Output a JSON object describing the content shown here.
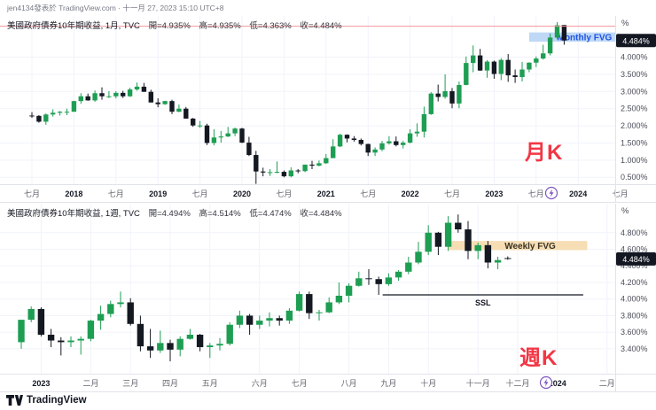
{
  "attribution": "jen4134發表於 TradingView.com · 十一月 27, 2023 15:10 UTC+8",
  "footer": {
    "brand": "TradingView"
  },
  "colors": {
    "up_candle": "#1e9e53",
    "down_candle": "#141821",
    "accent_red": "#f23645",
    "badge_bg": "#131722",
    "grid": "#f0f3fa",
    "axis_line": "#e0e3eb",
    "axis_text": "#4a4e59"
  },
  "chart_data": [
    {
      "type": "candlestick",
      "title": "美國政府債券10年期收益, 1月, TVC",
      "ohlc": [
        "開=4.935%",
        "高=4.935%",
        "低=4.363%",
        "收=4.484%"
      ],
      "interval_label": "月K",
      "unit": "%",
      "price_labels": [
        "4.000%",
        "3.500%",
        "3.000%",
        "2.500%",
        "2.000%",
        "1.500%",
        "1.000%",
        "0.500%"
      ],
      "last_price_badge": "4.484%",
      "ylim": [
        0.3,
        5.2
      ],
      "time_labels": [
        {
          "label": "七月",
          "index": 0
        },
        {
          "label": "2018",
          "index": 6
        },
        {
          "label": "七月",
          "index": 12
        },
        {
          "label": "2019",
          "index": 18
        },
        {
          "label": "七月",
          "index": 24
        },
        {
          "label": "2020",
          "index": 30
        },
        {
          "label": "七月",
          "index": 36
        },
        {
          "label": "2021",
          "index": 42
        },
        {
          "label": "七月",
          "index": 48
        },
        {
          "label": "2022",
          "index": 54
        },
        {
          "label": "七月",
          "index": 60
        },
        {
          "label": "2023",
          "index": 66
        },
        {
          "label": "七月",
          "index": 72
        },
        {
          "label": "2024",
          "index": 78
        },
        {
          "label": "七月",
          "index": 84
        }
      ],
      "annotations": {
        "horizontal_line": {
          "price": 4.9,
          "color": "#f2969b"
        },
        "fvg": {
          "label": "Monthly FVG",
          "from_index": 71,
          "price_top": 4.72,
          "price_bottom": 4.45,
          "band_color": "#bfd8f6",
          "label_color": "#1e53e5"
        },
        "axis_marker": {
          "type": "lightning",
          "x": 622
        }
      },
      "candles": [
        [
          2.3,
          2.4,
          2.23,
          2.29
        ],
        [
          2.29,
          2.31,
          2.09,
          2.12
        ],
        [
          2.12,
          2.36,
          2.03,
          2.33
        ],
        [
          2.33,
          2.48,
          2.27,
          2.38
        ],
        [
          2.38,
          2.43,
          2.3,
          2.41
        ],
        [
          2.41,
          2.5,
          2.31,
          2.41
        ],
        [
          2.41,
          2.73,
          2.41,
          2.72
        ],
        [
          2.72,
          2.95,
          2.64,
          2.86
        ],
        [
          2.86,
          2.94,
          2.73,
          2.74
        ],
        [
          2.74,
          3.03,
          2.7,
          2.95
        ],
        [
          2.95,
          3.12,
          2.76,
          2.86
        ],
        [
          2.86,
          3.01,
          2.81,
          2.86
        ],
        [
          2.86,
          3.01,
          2.8,
          2.96
        ],
        [
          2.96,
          3.02,
          2.81,
          2.86
        ],
        [
          2.86,
          3.11,
          2.84,
          3.06
        ],
        [
          3.06,
          3.26,
          3.02,
          3.14
        ],
        [
          3.14,
          3.25,
          2.99,
          2.99
        ],
        [
          2.99,
          3.05,
          2.68,
          2.68
        ],
        [
          2.68,
          2.8,
          2.54,
          2.63
        ],
        [
          2.63,
          2.73,
          2.61,
          2.72
        ],
        [
          2.72,
          2.76,
          2.34,
          2.41
        ],
        [
          2.41,
          2.62,
          2.4,
          2.5
        ],
        [
          2.5,
          2.55,
          2.21,
          2.21
        ],
        [
          2.21,
          2.23,
          1.97,
          2.01
        ],
        [
          2.01,
          2.14,
          1.94,
          2.01
        ],
        [
          2.01,
          2.06,
          1.44,
          1.5
        ],
        [
          1.5,
          1.9,
          1.43,
          1.66
        ],
        [
          1.66,
          1.85,
          1.51,
          1.69
        ],
        [
          1.69,
          1.97,
          1.67,
          1.78
        ],
        [
          1.78,
          1.95,
          1.7,
          1.92
        ],
        [
          1.92,
          1.94,
          1.5,
          1.51
        ],
        [
          1.51,
          1.68,
          1.12,
          1.15
        ],
        [
          1.15,
          1.27,
          0.31,
          0.67
        ],
        [
          0.67,
          0.78,
          0.53,
          0.64
        ],
        [
          0.64,
          0.74,
          0.54,
          0.65
        ],
        [
          0.65,
          0.96,
          0.62,
          0.66
        ],
        [
          0.66,
          0.7,
          0.5,
          0.53
        ],
        [
          0.53,
          0.79,
          0.5,
          0.7
        ],
        [
          0.7,
          0.74,
          0.62,
          0.68
        ],
        [
          0.68,
          0.87,
          0.65,
          0.87
        ],
        [
          0.87,
          0.98,
          0.74,
          0.84
        ],
        [
          0.84,
          0.99,
          0.82,
          0.91
        ],
        [
          0.91,
          1.18,
          0.89,
          1.06
        ],
        [
          1.06,
          1.61,
          1.06,
          1.4
        ],
        [
          1.4,
          1.77,
          1.38,
          1.74
        ],
        [
          1.74,
          1.75,
          1.52,
          1.63
        ],
        [
          1.63,
          1.7,
          1.54,
          1.59
        ],
        [
          1.59,
          1.63,
          1.43,
          1.47
        ],
        [
          1.47,
          1.48,
          1.12,
          1.22
        ],
        [
          1.22,
          1.37,
          1.12,
          1.31
        ],
        [
          1.31,
          1.56,
          1.26,
          1.49
        ],
        [
          1.49,
          1.7,
          1.45,
          1.55
        ],
        [
          1.55,
          1.69,
          1.4,
          1.44
        ],
        [
          1.44,
          1.56,
          1.34,
          1.51
        ],
        [
          1.51,
          1.9,
          1.49,
          1.78
        ],
        [
          1.78,
          2.07,
          1.68,
          1.83
        ],
        [
          1.83,
          2.56,
          1.66,
          2.34
        ],
        [
          2.34,
          2.98,
          2.32,
          2.94
        ],
        [
          2.94,
          3.2,
          2.71,
          2.84
        ],
        [
          2.84,
          3.5,
          2.79,
          3.01
        ],
        [
          3.01,
          3.1,
          2.51,
          2.65
        ],
        [
          2.65,
          3.29,
          2.51,
          3.19
        ],
        [
          3.19,
          4.02,
          3.18,
          3.83
        ],
        [
          3.83,
          4.34,
          3.56,
          4.05
        ],
        [
          4.05,
          4.24,
          3.6,
          3.61
        ],
        [
          3.61,
          3.91,
          3.4,
          3.87
        ],
        [
          3.87,
          3.9,
          3.37,
          3.51
        ],
        [
          3.51,
          3.97,
          3.33,
          3.92
        ],
        [
          3.92,
          4.09,
          3.28,
          3.47
        ],
        [
          3.47,
          3.64,
          3.25,
          3.42
        ],
        [
          3.42,
          3.86,
          3.29,
          3.64
        ],
        [
          3.64,
          3.85,
          3.56,
          3.84
        ],
        [
          3.84,
          4.02,
          3.71,
          3.96
        ],
        [
          3.96,
          4.36,
          3.93,
          4.11
        ],
        [
          4.11,
          4.69,
          4.05,
          4.57
        ],
        [
          4.57,
          5.02,
          4.52,
          4.93
        ],
        [
          4.935,
          4.935,
          4.363,
          4.484
        ]
      ]
    },
    {
      "type": "candlestick",
      "title": "美國政府債券10年期收益, 1週, TVC",
      "ohlc": [
        "開=4.494%",
        "高=4.514%",
        "低=4.474%",
        "收=4.484%"
      ],
      "interval_label": "週K",
      "unit": "%",
      "price_labels": [
        "4.800%",
        "4.600%",
        "4.400%",
        "4.200%",
        "4.000%",
        "3.800%",
        "3.600%",
        "3.400%"
      ],
      "last_price_badge": "4.484%",
      "ylim": [
        3.1,
        5.15
      ],
      "time_labels": [
        {
          "label": "2023",
          "index": 2
        },
        {
          "label": "二月",
          "index": 7
        },
        {
          "label": "三月",
          "index": 11
        },
        {
          "label": "四月",
          "index": 15
        },
        {
          "label": "五月",
          "index": 19
        },
        {
          "label": "六月",
          "index": 24
        },
        {
          "label": "七月",
          "index": 28
        },
        {
          "label": "八月",
          "index": 33
        },
        {
          "label": "九月",
          "index": 37
        },
        {
          "label": "十月",
          "index": 41
        },
        {
          "label": "十一月",
          "index": 46
        },
        {
          "label": "十二月",
          "index": 50
        },
        {
          "label": "2024",
          "index": 54
        },
        {
          "label": "二月",
          "index": 59
        }
      ],
      "annotations": {
        "fvg": {
          "label": "Weekly FVG",
          "from_index": 43,
          "to_index": 57,
          "price_top": 4.7,
          "price_bottom": 4.59,
          "band_color": "#f6ddb4",
          "label_color": "#3a3426"
        },
        "ssl": {
          "label": "SSL",
          "price": 4.05,
          "from_index": 36.4,
          "to_index": 56.6
        },
        "axis_marker": {
          "type": "lightning",
          "x": 616
        }
      },
      "candles": [
        [
          3.48,
          3.75,
          3.4,
          3.75
        ],
        [
          3.75,
          3.91,
          3.72,
          3.88
        ],
        [
          3.88,
          3.9,
          3.55,
          3.57
        ],
        [
          3.57,
          3.64,
          3.42,
          3.5
        ],
        [
          3.5,
          3.54,
          3.32,
          3.48
        ],
        [
          3.48,
          3.55,
          3.42,
          3.5
        ],
        [
          3.5,
          3.55,
          3.33,
          3.52
        ],
        [
          3.52,
          3.75,
          3.49,
          3.74
        ],
        [
          3.74,
          3.92,
          3.63,
          3.82
        ],
        [
          3.82,
          3.98,
          3.78,
          3.94
        ],
        [
          3.94,
          4.09,
          3.9,
          3.96
        ],
        [
          3.96,
          4.01,
          3.68,
          3.7
        ],
        [
          3.7,
          3.8,
          3.37,
          3.43
        ],
        [
          3.43,
          3.64,
          3.29,
          3.38
        ],
        [
          3.38,
          3.62,
          3.35,
          3.47
        ],
        [
          3.47,
          3.51,
          3.25,
          3.39
        ],
        [
          3.39,
          3.55,
          3.31,
          3.52
        ],
        [
          3.52,
          3.64,
          3.51,
          3.57
        ],
        [
          3.57,
          3.58,
          3.37,
          3.42
        ],
        [
          3.42,
          3.47,
          3.29,
          3.44
        ],
        [
          3.44,
          3.53,
          3.38,
          3.46
        ],
        [
          3.46,
          3.72,
          3.44,
          3.69
        ],
        [
          3.69,
          3.86,
          3.65,
          3.8
        ],
        [
          3.8,
          3.82,
          3.57,
          3.69
        ],
        [
          3.69,
          3.8,
          3.64,
          3.74
        ],
        [
          3.74,
          3.84,
          3.67,
          3.77
        ],
        [
          3.77,
          3.8,
          3.68,
          3.74
        ],
        [
          3.74,
          3.89,
          3.7,
          3.86
        ],
        [
          3.86,
          4.09,
          3.85,
          4.06
        ],
        [
          4.06,
          4.09,
          3.76,
          3.83
        ],
        [
          3.83,
          3.87,
          3.74,
          3.84
        ],
        [
          3.84,
          4.02,
          3.83,
          3.96
        ],
        [
          3.96,
          4.2,
          3.94,
          4.04
        ],
        [
          4.04,
          4.19,
          3.96,
          4.16
        ],
        [
          4.16,
          4.33,
          4.15,
          4.25
        ],
        [
          4.25,
          4.36,
          4.17,
          4.24
        ],
        [
          4.24,
          4.27,
          4.05,
          4.18
        ],
        [
          4.18,
          4.31,
          4.16,
          4.26
        ],
        [
          4.26,
          4.35,
          4.22,
          4.33
        ],
        [
          4.33,
          4.51,
          4.3,
          4.44
        ],
        [
          4.44,
          4.69,
          4.42,
          4.57
        ],
        [
          4.57,
          4.89,
          4.53,
          4.8
        ],
        [
          4.8,
          4.81,
          4.53,
          4.63
        ],
        [
          4.63,
          5.0,
          4.58,
          4.92
        ],
        [
          4.92,
          5.02,
          4.8,
          4.84
        ],
        [
          4.84,
          4.94,
          4.48,
          4.58
        ],
        [
          4.58,
          4.68,
          4.48,
          4.65
        ],
        [
          4.65,
          4.7,
          4.37,
          4.44
        ],
        [
          4.44,
          4.51,
          4.36,
          4.47
        ],
        [
          4.494,
          4.514,
          4.474,
          4.484
        ]
      ]
    }
  ]
}
